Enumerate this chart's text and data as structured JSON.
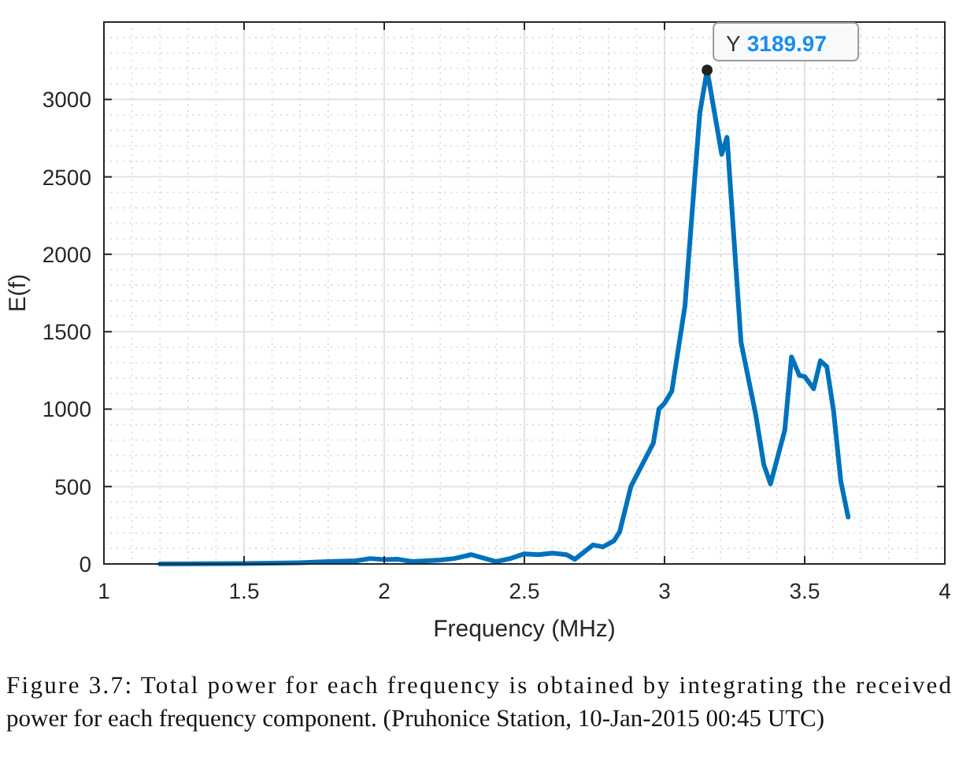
{
  "chart_data": {
    "type": "line",
    "xlabel": "Frequency (MHz)",
    "ylabel": "E(f)",
    "x": [
      1.2,
      1.5,
      1.7,
      1.8,
      1.9,
      1.95,
      2.0,
      2.05,
      2.1,
      2.2,
      2.25,
      2.31,
      2.4,
      2.45,
      2.5,
      2.55,
      2.6,
      2.65,
      2.68,
      2.745,
      2.78,
      2.82,
      2.84,
      2.88,
      2.92,
      2.96,
      2.98,
      3.0,
      3.026,
      3.073,
      3.107,
      3.126,
      3.152,
      3.204,
      3.223,
      3.273,
      3.326,
      3.354,
      3.378,
      3.429,
      3.453,
      3.481,
      3.5,
      3.532,
      3.556,
      3.579,
      3.603,
      3.629,
      3.655
    ],
    "series": [
      {
        "color": "#0072bd",
        "values": [
          0,
          2,
          8,
          15,
          20,
          35,
          28,
          30,
          15,
          25,
          35,
          60,
          15,
          35,
          65,
          60,
          70,
          60,
          30,
          123,
          110,
          150,
          208,
          500,
          640,
          780,
          1000,
          1038,
          1116,
          1668,
          2472,
          2914,
          3189.97,
          2646,
          2756,
          1431,
          958,
          643,
          517,
          864,
          1337,
          1218,
          1210,
          1132,
          1312,
          1274,
          990,
          533,
          303
        ]
      }
    ],
    "xlim": [
      1,
      4
    ],
    "xticks": [
      1,
      1.5,
      2,
      2.5,
      3,
      3.5,
      4
    ],
    "ylim": [
      0,
      3500
    ],
    "yticks": [
      0,
      500,
      1000,
      1500,
      2000,
      2500,
      3000
    ],
    "grid": true,
    "line_style": "solid",
    "marker": "none",
    "annotations": [
      {
        "text": "Y 3189.97",
        "x": 3.152,
        "y": 3189.97
      },
      "Figure 3.7: Total power for each frequency is obtained by integrating the received power for each frequency component. (Pruhonice Station, 10-Jan-2015 00:45 UTC)"
    ]
  }
}
